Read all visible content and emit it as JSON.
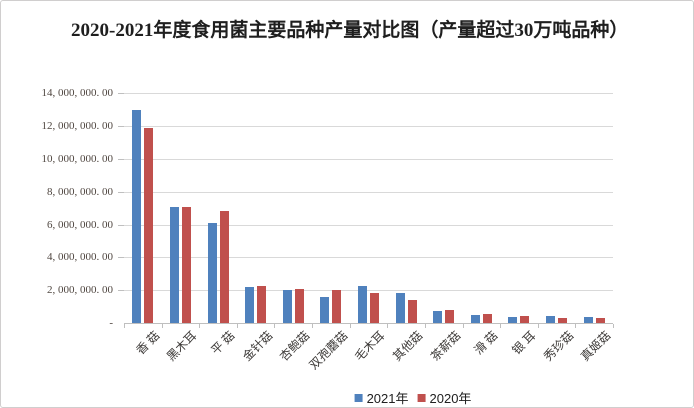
{
  "title": "2020-2021年度食用菌主要品种产量对比图（产量超过30万吨品种）",
  "legend": [
    {
      "label": "2021年",
      "color": "#4F81BD"
    },
    {
      "label": "2020年",
      "color": "#C0504D"
    }
  ],
  "colors": {
    "series_2021": "#4F81BD",
    "series_2020": "#C0504D",
    "gridline": "#d9d9d9",
    "axis_line": "#bfbfbf",
    "axis_text": "#4f4640",
    "title_text": "#1f1f1f",
    "frame_border": "#d0cece",
    "background": "#ffffff"
  },
  "chart_data": {
    "type": "bar",
    "title": "2020-2021年度食用菌主要品种产量对比图（产量超过30万吨品种）",
    "xlabel": "",
    "ylabel": "",
    "ylim": [
      0,
      14000000
    ],
    "y_tick_step": 2000000,
    "grid": true,
    "legend_position": "bottom",
    "categories": [
      "香 菇",
      "黑木耳",
      "平 菇",
      "金针菇",
      "杏鲍菇",
      "双孢蘑菇",
      "毛木耳",
      "其他菇",
      "茶薪菇",
      "滑 菇",
      "银 耳",
      "秀珍菇",
      "真姬菇"
    ],
    "series": [
      {
        "name": "2021年",
        "color": "#4F81BD",
        "values": [
          13000000,
          7070000,
          6090000,
          2170000,
          2020000,
          1560000,
          2240000,
          1800000,
          750000,
          470000,
          380000,
          455000,
          350000
        ]
      },
      {
        "name": "2020年",
        "color": "#C0504D",
        "values": [
          11880000,
          7060000,
          6820000,
          2280000,
          2080000,
          2000000,
          1850000,
          1380000,
          780000,
          550000,
          410000,
          330000,
          290000
        ]
      }
    ],
    "y_tick_labels": [
      "-",
      "2, 000, 000. 00",
      "4, 000, 000. 00",
      "6, 000, 000. 00",
      "8, 000, 000. 00",
      "10, 000, 000. 00",
      "12, 000, 000. 00",
      "14, 000, 000. 00"
    ]
  }
}
